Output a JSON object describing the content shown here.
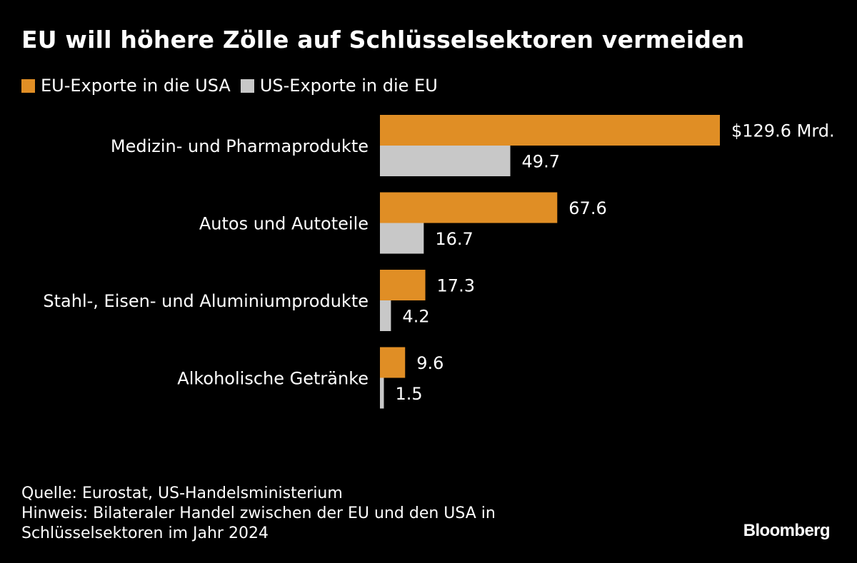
{
  "title": "EU will höhere Zölle auf Schlüsselsektoren vermeiden",
  "legend": [
    {
      "label": "EU-Exporte in die USA",
      "color": "#e08e25"
    },
    {
      "label": "US-Exporte in die EU",
      "color": "#c8c8c8"
    }
  ],
  "chart_data": {
    "type": "bar",
    "orientation": "horizontal",
    "title": "EU will höhere Zölle auf Schlüsselsektoren vermeiden",
    "unit_prefix": "$",
    "unit_suffix": " Mrd.",
    "categories": [
      "Medizin- und Pharmaprodukte",
      "Autos und Autoteile",
      "Stahl-, Eisen- und Aluminiumprodukte",
      "Alkoholische Getränke"
    ],
    "series": [
      {
        "name": "EU-Exporte in die USA",
        "color": "#e08e25",
        "values": [
          129.6,
          67.6,
          17.3,
          9.6
        ]
      },
      {
        "name": "US-Exporte in die EU",
        "color": "#c8c8c8",
        "values": [
          49.7,
          16.7,
          4.2,
          1.5
        ]
      }
    ],
    "value_labels": [
      [
        "$129.6 Mrd.",
        "49.7"
      ],
      [
        "67.6",
        "16.7"
      ],
      [
        "17.3",
        "4.2"
      ],
      [
        "9.6",
        "1.5"
      ]
    ],
    "xlim": [
      0,
      129.6
    ],
    "grid": false,
    "legend_position": "top-left"
  },
  "footer": {
    "source": "Quelle: Eurostat, US-Handelsministerium",
    "note_line1": "Hinweis: Bilateraler Handel zwischen der EU und den USA in",
    "note_line2": "Schlüsselsektoren im Jahr 2024"
  },
  "brand": "Bloomberg"
}
